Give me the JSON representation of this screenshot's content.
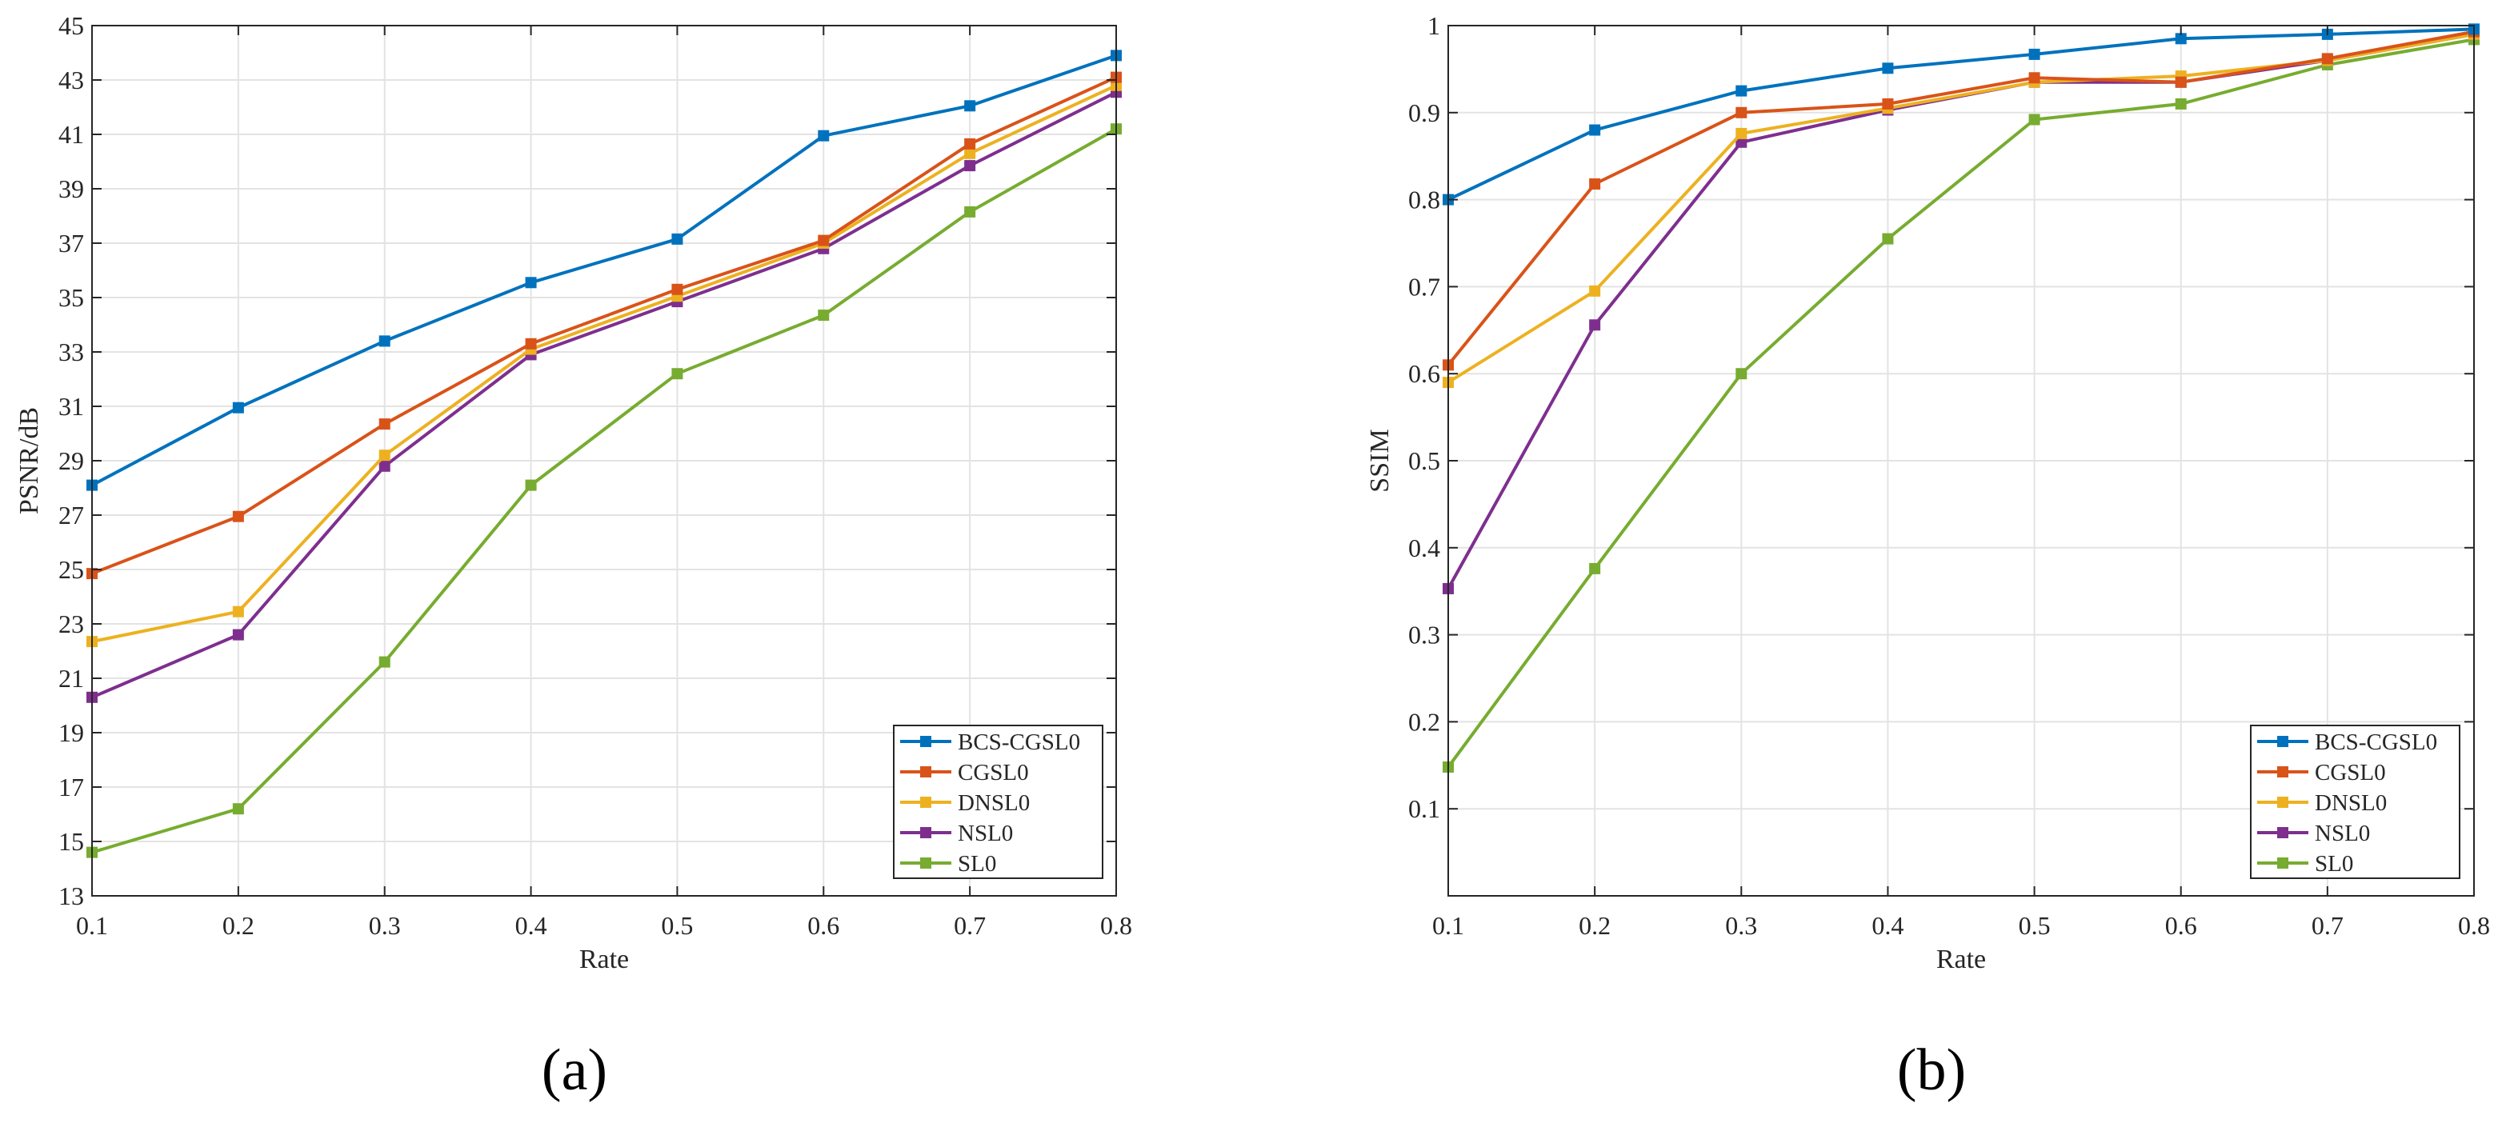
{
  "figure": {
    "panel_labels": [
      "(a)",
      "(b)"
    ]
  },
  "chart_data": [
    {
      "type": "line",
      "panel": "(a)",
      "title": "",
      "xlabel": "Rate",
      "ylabel": "PSNR/dB",
      "xlim": [
        0.1,
        0.8
      ],
      "ylim": [
        13,
        45
      ],
      "xticks": [
        0.1,
        0.2,
        0.3,
        0.4,
        0.5,
        0.6,
        0.7,
        0.8
      ],
      "yticks": [
        13,
        15,
        17,
        19,
        21,
        23,
        25,
        27,
        29,
        31,
        33,
        35,
        37,
        39,
        41,
        43,
        45
      ],
      "grid": true,
      "legend_position": "bottom-right",
      "x": [
        0.1,
        0.2,
        0.3,
        0.4,
        0.5,
        0.6,
        0.7,
        0.8
      ],
      "series": [
        {
          "name": "BCS-CGSL0",
          "color": "#0072BD",
          "values": [
            28.1,
            30.95,
            33.4,
            35.55,
            37.15,
            40.95,
            42.05,
            43.9
          ]
        },
        {
          "name": "CGSL0",
          "color": "#D95319",
          "values": [
            24.85,
            26.95,
            30.35,
            33.3,
            35.3,
            37.1,
            40.65,
            43.1
          ]
        },
        {
          "name": "DNSL0",
          "color": "#EDB120",
          "values": [
            22.35,
            23.45,
            29.2,
            33.1,
            35.05,
            37.0,
            40.3,
            42.8
          ]
        },
        {
          "name": "NSL0",
          "color": "#7E2F8E",
          "values": [
            20.3,
            22.6,
            28.8,
            32.9,
            34.85,
            36.8,
            39.85,
            42.55
          ]
        },
        {
          "name": "SL0",
          "color": "#77AC30",
          "values": [
            14.6,
            16.2,
            21.6,
            28.1,
            32.2,
            34.35,
            38.15,
            41.2
          ]
        }
      ]
    },
    {
      "type": "line",
      "panel": "(b)",
      "title": "",
      "xlabel": "Rate",
      "ylabel": "SSIM",
      "xlim": [
        0.1,
        0.8
      ],
      "ylim": [
        0,
        1
      ],
      "xticks": [
        0.1,
        0.2,
        0.3,
        0.4,
        0.5,
        0.6,
        0.7,
        0.8
      ],
      "yticks": [
        0.1,
        0.2,
        0.3,
        0.4,
        0.5,
        0.6,
        0.7,
        0.8,
        0.9,
        1
      ],
      "grid": true,
      "legend_position": "bottom-right",
      "x": [
        0.1,
        0.2,
        0.3,
        0.4,
        0.5,
        0.6,
        0.7,
        0.8
      ],
      "series": [
        {
          "name": "BCS-CGSL0",
          "color": "#0072BD",
          "values": [
            0.8,
            0.88,
            0.925,
            0.951,
            0.967,
            0.985,
            0.99,
            0.996
          ]
        },
        {
          "name": "CGSL0",
          "color": "#D95319",
          "values": [
            0.61,
            0.818,
            0.9,
            0.91,
            0.94,
            0.935,
            0.962,
            0.993
          ]
        },
        {
          "name": "DNSL0",
          "color": "#EDB120",
          "values": [
            0.59,
            0.695,
            0.876,
            0.905,
            0.935,
            0.942,
            0.96,
            0.99
          ]
        },
        {
          "name": "NSL0",
          "color": "#7E2F8E",
          "values": [
            0.353,
            0.656,
            0.866,
            0.903,
            0.935,
            0.935,
            0.96,
            0.99
          ]
        },
        {
          "name": "SL0",
          "color": "#77AC30",
          "values": [
            0.148,
            0.376,
            0.6,
            0.755,
            0.892,
            0.91,
            0.955,
            0.984
          ]
        }
      ]
    }
  ]
}
